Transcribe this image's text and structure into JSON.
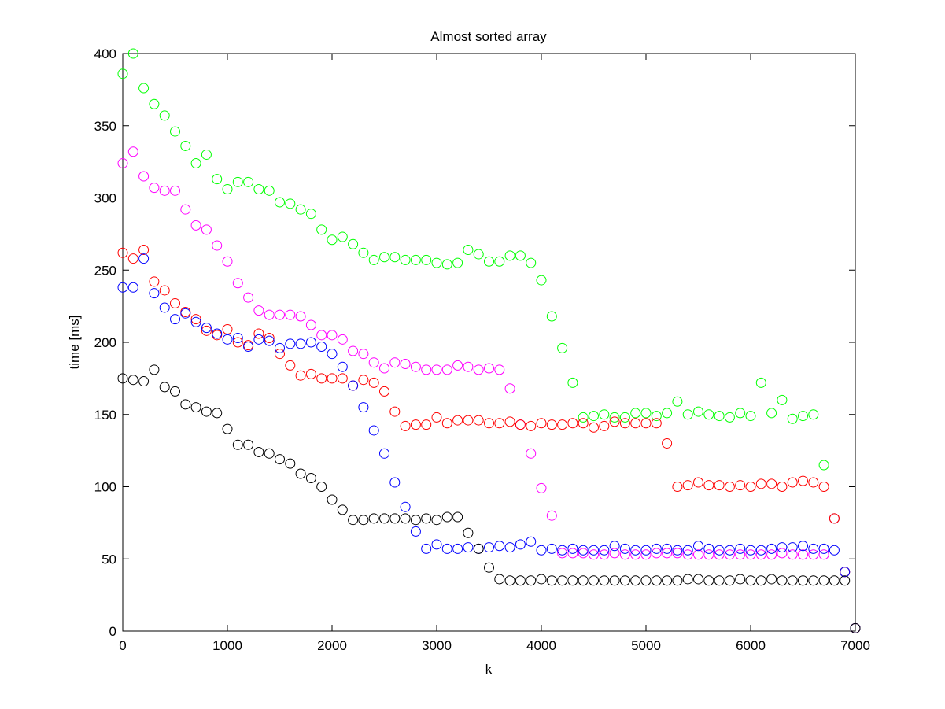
{
  "chart_data": {
    "type": "scatter",
    "title": "Almost sorted array",
    "xlabel": "k",
    "ylabel": "time [ms]",
    "xlim": [
      0,
      7000
    ],
    "ylim": [
      0,
      400
    ],
    "xticks": [
      0,
      1000,
      2000,
      3000,
      4000,
      5000,
      6000,
      7000
    ],
    "yticks": [
      0,
      50,
      100,
      150,
      200,
      250,
      300,
      350,
      400
    ],
    "grid": false,
    "legend": "none",
    "marker": "circle-open",
    "series": [
      {
        "color": "#00ff00",
        "x": [
          0,
          100,
          200,
          300,
          400,
          500,
          600,
          700,
          800,
          900,
          1000,
          1100,
          1200,
          1300,
          1400,
          1500,
          1600,
          1700,
          1800,
          1900,
          2000,
          2100,
          2200,
          2300,
          2400,
          2500,
          2600,
          2700,
          2800,
          2900,
          3000,
          3100,
          3200,
          3300,
          3400,
          3500,
          3600,
          3700,
          3800,
          3900,
          4000,
          4100,
          4200,
          4300,
          4400,
          4500,
          4600,
          4700,
          4800,
          4900,
          5000,
          5100,
          5200,
          5300,
          5400,
          5500,
          5600,
          5700,
          5800,
          5900,
          6000,
          6100,
          6200,
          6300,
          6400,
          6500,
          6600,
          6700,
          6800,
          6900,
          7000
        ],
        "y": [
          386,
          400,
          376,
          365,
          357,
          346,
          336,
          324,
          330,
          313,
          306,
          311,
          311,
          306,
          305,
          297,
          296,
          292,
          289,
          278,
          271,
          273,
          268,
          262,
          257,
          259,
          259,
          257,
          257,
          257,
          255,
          254,
          255,
          264,
          261,
          256,
          256,
          260,
          260,
          255,
          243,
          218,
          196,
          172,
          148,
          149,
          150,
          148,
          148,
          151,
          151,
          149,
          151,
          159,
          150,
          152,
          150,
          149,
          148,
          151,
          149,
          172,
          151,
          160,
          147,
          149,
          150,
          115,
          78,
          41,
          2
        ]
      },
      {
        "color": "#ff00ff",
        "x": [
          0,
          100,
          200,
          300,
          400,
          500,
          600,
          700,
          800,
          900,
          1000,
          1100,
          1200,
          1300,
          1400,
          1500,
          1600,
          1700,
          1800,
          1900,
          2000,
          2100,
          2200,
          2300,
          2400,
          2500,
          2600,
          2700,
          2800,
          2900,
          3000,
          3100,
          3200,
          3300,
          3400,
          3500,
          3600,
          3700,
          3800,
          3900,
          4000,
          4100,
          4200,
          4300,
          4400,
          4500,
          4600,
          4700,
          4800,
          4900,
          5000,
          5100,
          5200,
          5300,
          5400,
          5500,
          5600,
          5700,
          5800,
          5900,
          6000,
          6100,
          6200,
          6300,
          6400,
          6500,
          6600,
          6700,
          6800,
          6900,
          7000
        ],
        "y": [
          324,
          332,
          315,
          307,
          305,
          305,
          292,
          281,
          278,
          267,
          256,
          241,
          231,
          222,
          219,
          219,
          219,
          218,
          212,
          205,
          205,
          202,
          194,
          192,
          186,
          182,
          186,
          185,
          183,
          181,
          181,
          181,
          184,
          183,
          181,
          182,
          181,
          168,
          143,
          123,
          99,
          80,
          54,
          54,
          54,
          53,
          53,
          54,
          53,
          53,
          53,
          54,
          54,
          54,
          53,
          53,
          53,
          53,
          53,
          53,
          53,
          53,
          53,
          54,
          53,
          53,
          53,
          53,
          78,
          41,
          2
        ]
      },
      {
        "color": "#ff0000",
        "x": [
          0,
          100,
          200,
          300,
          400,
          500,
          600,
          700,
          800,
          900,
          1000,
          1100,
          1200,
          1300,
          1400,
          1500,
          1600,
          1700,
          1800,
          1900,
          2000,
          2100,
          2200,
          2300,
          2400,
          2500,
          2600,
          2700,
          2800,
          2900,
          3000,
          3100,
          3200,
          3300,
          3400,
          3500,
          3600,
          3700,
          3800,
          3900,
          4000,
          4100,
          4200,
          4300,
          4400,
          4500,
          4600,
          4700,
          4800,
          4900,
          5000,
          5100,
          5200,
          5300,
          5400,
          5500,
          5600,
          5700,
          5800,
          5900,
          6000,
          6100,
          6200,
          6300,
          6400,
          6500,
          6600,
          6700,
          6800,
          6900,
          7000
        ],
        "y": [
          262,
          258,
          264,
          242,
          236,
          227,
          221,
          216,
          208,
          205,
          209,
          200,
          198,
          206,
          203,
          192,
          184,
          177,
          178,
          175,
          175,
          175,
          170,
          174,
          172,
          166,
          152,
          142,
          143,
          143,
          148,
          144,
          146,
          146,
          146,
          144,
          144,
          145,
          143,
          142,
          144,
          143,
          143,
          144,
          144,
          141,
          142,
          145,
          144,
          144,
          144,
          144,
          130,
          100,
          101,
          103,
          101,
          101,
          100,
          101,
          100,
          102,
          102,
          100,
          103,
          104,
          103,
          100,
          78,
          41,
          2
        ]
      },
      {
        "color": "#0000ff",
        "x": [
          0,
          100,
          200,
          300,
          400,
          500,
          600,
          700,
          800,
          900,
          1000,
          1100,
          1200,
          1300,
          1400,
          1500,
          1600,
          1700,
          1800,
          1900,
          2000,
          2100,
          2200,
          2300,
          2400,
          2500,
          2600,
          2700,
          2800,
          2900,
          3000,
          3100,
          3200,
          3300,
          3400,
          3500,
          3600,
          3700,
          3800,
          3900,
          4000,
          4100,
          4200,
          4300,
          4400,
          4500,
          4600,
          4700,
          4800,
          4900,
          5000,
          5100,
          5200,
          5300,
          5400,
          5500,
          5600,
          5700,
          5800,
          5900,
          6000,
          6100,
          6200,
          6300,
          6400,
          6500,
          6600,
          6700,
          6800,
          6900,
          7000
        ],
        "y": [
          238,
          238,
          258,
          234,
          224,
          216,
          220,
          214,
          210,
          206,
          202,
          203,
          197,
          202,
          201,
          196,
          199,
          199,
          200,
          197,
          192,
          183,
          170,
          155,
          139,
          123,
          103,
          86,
          69,
          57,
          60,
          57,
          57,
          58,
          57,
          58,
          59,
          58,
          60,
          62,
          56,
          57,
          56,
          57,
          56,
          56,
          56,
          59,
          57,
          56,
          56,
          57,
          57,
          56,
          56,
          59,
          57,
          56,
          56,
          57,
          56,
          56,
          57,
          58,
          58,
          59,
          57,
          57,
          56,
          41,
          2
        ]
      },
      {
        "color": "#000000",
        "x": [
          0,
          100,
          200,
          300,
          400,
          500,
          600,
          700,
          800,
          900,
          1000,
          1100,
          1200,
          1300,
          1400,
          1500,
          1600,
          1700,
          1800,
          1900,
          2000,
          2100,
          2200,
          2300,
          2400,
          2500,
          2600,
          2700,
          2800,
          2900,
          3000,
          3100,
          3200,
          3300,
          3400,
          3500,
          3600,
          3700,
          3800,
          3900,
          4000,
          4100,
          4200,
          4300,
          4400,
          4500,
          4600,
          4700,
          4800,
          4900,
          5000,
          5100,
          5200,
          5300,
          5400,
          5500,
          5600,
          5700,
          5800,
          5900,
          6000,
          6100,
          6200,
          6300,
          6400,
          6500,
          6600,
          6700,
          6800,
          6900,
          7000
        ],
        "y": [
          175,
          174,
          173,
          181,
          169,
          166,
          157,
          155,
          152,
          151,
          140,
          129,
          129,
          124,
          123,
          119,
          116,
          109,
          106,
          100,
          91,
          84,
          77,
          77,
          78,
          78,
          78,
          78,
          77,
          78,
          77,
          79,
          79,
          68,
          57,
          44,
          36,
          35,
          35,
          35,
          36,
          35,
          35,
          35,
          35,
          35,
          35,
          35,
          35,
          35,
          35,
          35,
          35,
          35,
          36,
          36,
          35,
          35,
          35,
          36,
          35,
          35,
          36,
          35,
          35,
          35,
          35,
          35,
          35,
          35,
          2
        ]
      }
    ]
  }
}
